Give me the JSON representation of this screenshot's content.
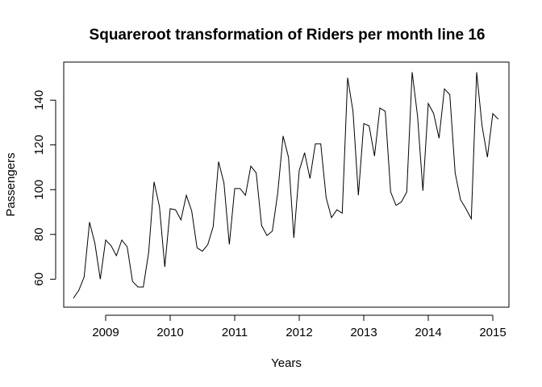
{
  "chart_data": {
    "type": "line",
    "title": "Squareroot transformation of Riders per month line 16",
    "xlabel": "Years",
    "ylabel": "Passengers",
    "xlim": [
      2008.35,
      2015.25
    ],
    "ylim": [
      47.5,
      157
    ],
    "x_ticks": [
      2009,
      2010,
      2011,
      2012,
      2013,
      2014,
      2015
    ],
    "x_tick_labels": [
      "2009",
      "2010",
      "2011",
      "2012",
      "2013",
      "2014",
      "2015"
    ],
    "y_ticks": [
      60,
      80,
      100,
      120,
      140
    ],
    "y_tick_labels": [
      "60",
      "80",
      "100",
      "120",
      "140"
    ],
    "grid": false,
    "legend": "none",
    "line_color": "#000000",
    "start": {
      "year": 2008,
      "month": 7
    },
    "frequency": 12,
    "series": [
      {
        "values": [
          51.5,
          55,
          61,
          85.5,
          76,
          60,
          77.5,
          75,
          70.5,
          77.5,
          74.5,
          59,
          56.5,
          56.5,
          72,
          103.5,
          92.5,
          65.5,
          91.5,
          91,
          86.5,
          97.5,
          90.5,
          74,
          72.5,
          75.5,
          83.5,
          112.5,
          103,
          75.5,
          100.5,
          100.5,
          97.5,
          110.5,
          107.5,
          84,
          79.5,
          81.5,
          98.5,
          124,
          114.5,
          78.5,
          108.5,
          116.5,
          105,
          120.5,
          120.5,
          96.5,
          87.5,
          91,
          89.5,
          150,
          135,
          97.5,
          129.5,
          128.5,
          115,
          136.5,
          135,
          99,
          93,
          94.5,
          99,
          152.5,
          133,
          99.5,
          138.5,
          134,
          123,
          145,
          142.5,
          107.5,
          95.5,
          91.5,
          87,
          152.5,
          128.5,
          114.5,
          134,
          131.5
        ]
      }
    ]
  }
}
